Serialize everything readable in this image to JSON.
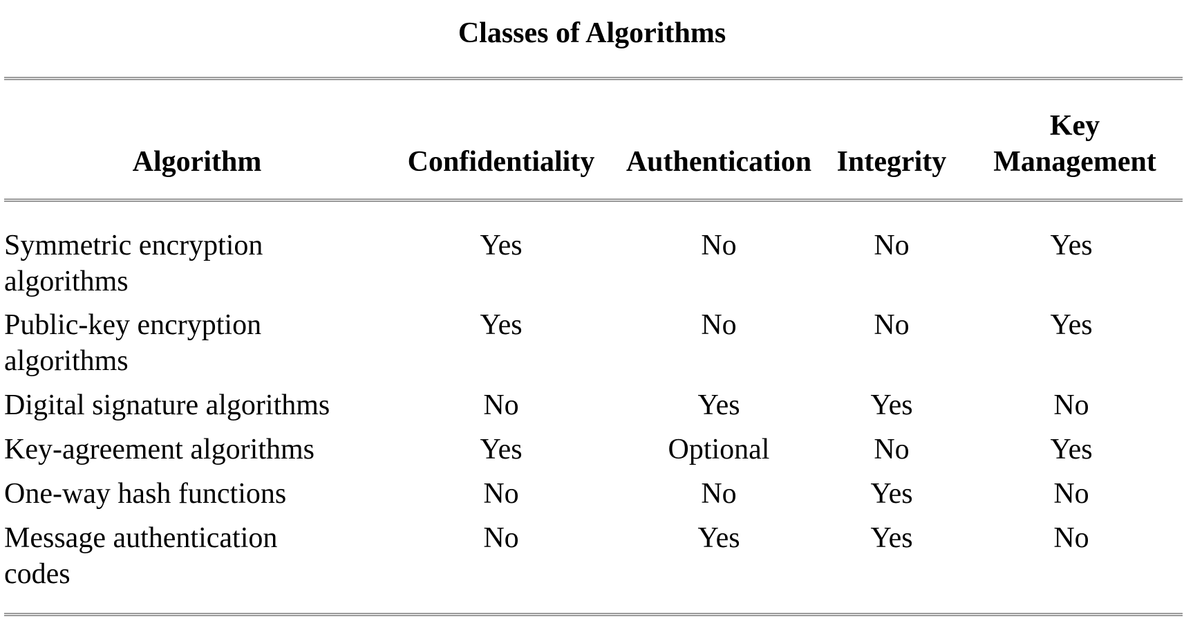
{
  "title": "Classes of Algorithms",
  "headers": {
    "algorithm": "Algorithm",
    "confidentiality": "Confidentiality",
    "authentication": "Authentication",
    "integrity": "Integrity",
    "key_line1": "Key",
    "key_line2": "Management"
  },
  "rows": [
    {
      "algorithm_line1": "Symmetric encryption",
      "algorithm_line2": "algorithms",
      "confidentiality": "Yes",
      "authentication": "No",
      "integrity": "No",
      "key_management": "Yes"
    },
    {
      "algorithm_line1": "Public-key encryption",
      "algorithm_line2": "algorithms",
      "confidentiality": "Yes",
      "authentication": "No",
      "integrity": "No",
      "key_management": "Yes"
    },
    {
      "algorithm_line1": "Digital signature algorithms",
      "algorithm_line2": "",
      "confidentiality": "No",
      "authentication": "Yes",
      "integrity": "Yes",
      "key_management": "No"
    },
    {
      "algorithm_line1": "Key-agreement algorithms",
      "algorithm_line2": "",
      "confidentiality": "Yes",
      "authentication": "Optional",
      "integrity": "No",
      "key_management": "Yes"
    },
    {
      "algorithm_line1": "One-way hash functions",
      "algorithm_line2": "",
      "confidentiality": "No",
      "authentication": "No",
      "integrity": "Yes",
      "key_management": "No"
    },
    {
      "algorithm_line1": "Message authentication",
      "algorithm_line2": "codes",
      "confidentiality": "No",
      "authentication": "Yes",
      "integrity": "Yes",
      "key_management": "No"
    }
  ]
}
